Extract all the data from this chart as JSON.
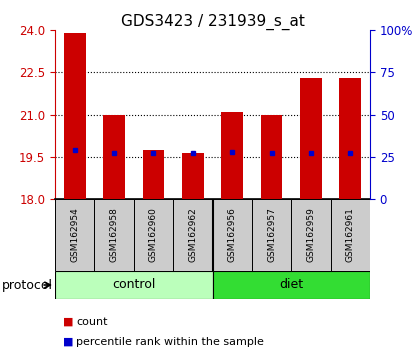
{
  "title": "GDS3423 / 231939_s_at",
  "samples": [
    "GSM162954",
    "GSM162958",
    "GSM162960",
    "GSM162962",
    "GSM162956",
    "GSM162957",
    "GSM162959",
    "GSM162961"
  ],
  "count_values": [
    23.9,
    21.0,
    19.75,
    19.62,
    21.1,
    21.0,
    22.28,
    22.28
  ],
  "percentile_values": [
    19.73,
    19.65,
    19.65,
    19.63,
    19.68,
    19.63,
    19.63,
    19.63
  ],
  "baseline": 18.0,
  "ylim": [
    18.0,
    24.0
  ],
  "yticks": [
    18,
    19.5,
    21,
    22.5,
    24
  ],
  "right_ylim": [
    0,
    100
  ],
  "right_yticks": [
    0,
    25,
    50,
    75,
    100
  ],
  "right_yticklabels": [
    "0",
    "25",
    "50",
    "75",
    "100%"
  ],
  "groups": [
    {
      "label": "control",
      "start": 0,
      "end": 4,
      "color": "#bbffbb"
    },
    {
      "label": "diet",
      "start": 4,
      "end": 8,
      "color": "#33dd33"
    }
  ],
  "protocol_label": "protocol",
  "bar_color": "#cc0000",
  "percentile_color": "#0000cc",
  "bar_width": 0.55,
  "bg_color": "#ffffff",
  "left_tick_color": "#cc0000",
  "right_tick_color": "#0000cc",
  "title_fontsize": 11,
  "tick_fontsize": 8.5,
  "sample_fontsize": 6.5,
  "group_fontsize": 9
}
